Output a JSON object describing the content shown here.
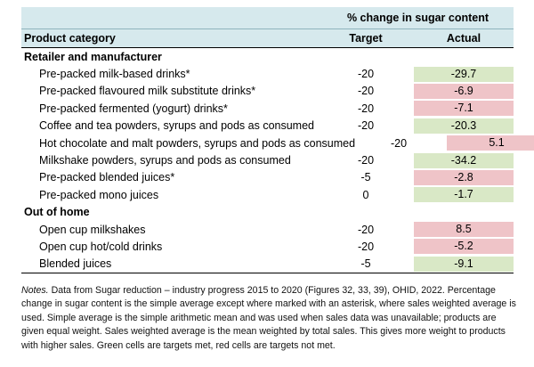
{
  "header": {
    "span_title": "% change in sugar content",
    "col_category": "Product category",
    "col_target": "Target",
    "col_actual": "Actual"
  },
  "groups": [
    {
      "title": "Retailer and manufacturer",
      "rows": [
        {
          "category": "Pre-packed milk-based drinks*",
          "target": "-20",
          "actual": "-29.7",
          "met": true
        },
        {
          "category": "Pre-packed flavoured milk substitute drinks*",
          "target": "-20",
          "actual": "-6.9",
          "met": false
        },
        {
          "category": "Pre-packed fermented (yogurt) drinks*",
          "target": "-20",
          "actual": "-7.1",
          "met": false
        },
        {
          "category": "Coffee and tea powders, syrups and pods as consumed",
          "target": "-20",
          "actual": "-20.3",
          "met": true
        },
        {
          "category": "Hot chocolate and malt powders, syrups and pods as consumed",
          "target": "-20",
          "actual": "5.1",
          "met": false
        },
        {
          "category": "Milkshake powders, syrups and pods as consumed",
          "target": "-20",
          "actual": "-34.2",
          "met": true
        },
        {
          "category": "Pre-packed blended juices*",
          "target": "-5",
          "actual": "-2.8",
          "met": false
        },
        {
          "category": "Pre-packed mono juices",
          "target": "0",
          "actual": "-1.7",
          "met": true
        }
      ]
    },
    {
      "title": "Out of home",
      "rows": [
        {
          "category": "Open cup milkshakes",
          "target": "-20",
          "actual": "8.5",
          "met": false
        },
        {
          "category": "Open cup hot/cold drinks",
          "target": "-20",
          "actual": "-5.2",
          "met": false
        },
        {
          "category": "Blended juices",
          "target": "-5",
          "actual": "-9.1",
          "met": true
        }
      ]
    }
  ],
  "colors": {
    "met": "#d9e8c6",
    "not_met": "#efc4c8",
    "header": "#d6e9ed"
  },
  "notes": {
    "label": "Notes.",
    "text": " Data from Sugar reduction – industry progress 2015 to 2020 (Figures 32, 33, 39), OHID, 2022. Percentage change in sugar content is the simple average except where marked with an asterisk, where sales weighted average is used. Simple average is the simple arithmetic mean and was used when sales data was unavailable; products are given equal weight. Sales weighted average is the mean weighted by total sales. This gives more weight to products with higher sales. Green cells are targets met, red cells are targets not met."
  }
}
